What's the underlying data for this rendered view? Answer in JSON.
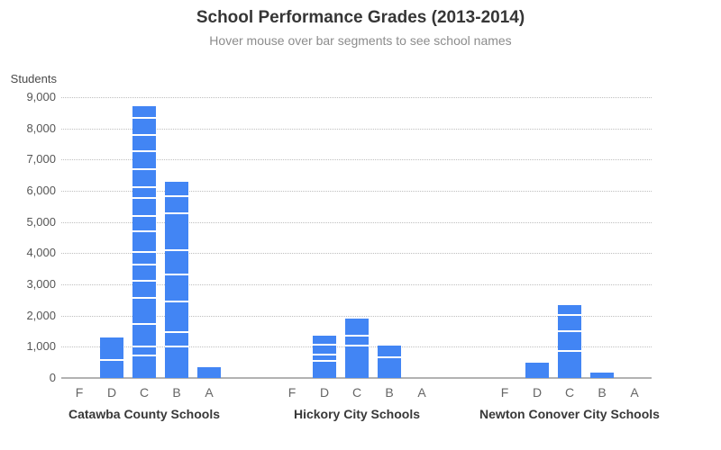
{
  "chart_data": {
    "type": "bar",
    "stacked": true,
    "title": "School Performance Grades (2013-2014)",
    "subtitle": "Hover mouse over bar segments to see school names",
    "ylabel": "Students",
    "xlabel": "",
    "ylim": [
      0,
      9000
    ],
    "ytick_interval": 1000,
    "ytick_labels": [
      "0",
      "1,000",
      "2,000",
      "3,000",
      "4,000",
      "5,000",
      "6,000",
      "7,000",
      "8,000",
      "9,000"
    ],
    "grades": [
      "F",
      "D",
      "C",
      "B",
      "A"
    ],
    "bar_color": "#4285f4",
    "segment_divider_color": "#ffffff",
    "grid": "dotted-horizontal",
    "legend": "none",
    "groups": [
      {
        "label": "Catawba County Schools",
        "totals": {
          "F": 0,
          "D": 1290,
          "C": 8720,
          "B": 6275,
          "A": 350
        },
        "segments": {
          "F": [],
          "D": [
            560,
            730
          ],
          "C": [
            685,
            290,
            720,
            845,
            550,
            505,
            405,
            670,
            505,
            575,
            345,
            575,
            575,
            520,
            535,
            420
          ],
          "B": [
            970,
            480,
            960,
            885,
            780,
            1170,
            560,
            470
          ],
          "A": [
            350
          ]
        }
      },
      {
        "label": "Hickory City Schools",
        "totals": {
          "F": 0,
          "D": 1350,
          "C": 1915,
          "B": 1040,
          "A": 0
        },
        "segments": {
          "F": [],
          "D": [
            515,
            200,
            310,
            325
          ],
          "C": [
            995,
            345,
            575
          ],
          "B": [
            640,
            400
          ],
          "A": []
        }
      },
      {
        "label": "Newton Conover City Schools",
        "totals": {
          "F": 0,
          "D": 500,
          "C": 2335,
          "B": 180,
          "A": 0
        },
        "segments": {
          "F": [],
          "D": [
            500
          ],
          "C": [
            830,
            645,
            505,
            355
          ],
          "B": [
            180
          ],
          "A": []
        }
      }
    ]
  }
}
